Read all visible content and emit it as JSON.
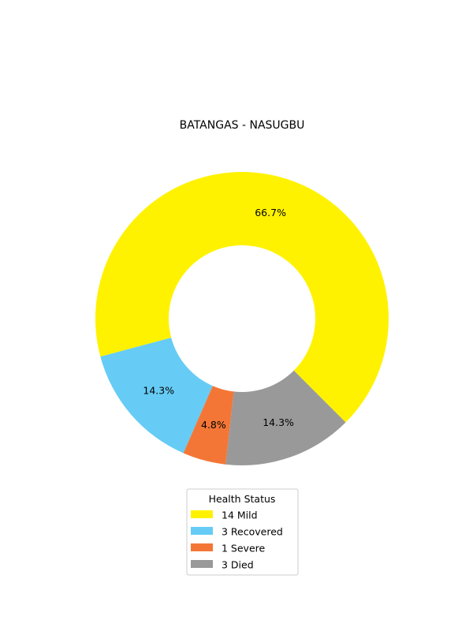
{
  "chart_data": {
    "type": "pie",
    "style": "donut",
    "title": "BATANGAS - NASUGBU",
    "legend": {
      "title": "Health Status",
      "placement": "bottom-center"
    },
    "slices": [
      {
        "label": "14  Mild",
        "value": 14,
        "percent_label": "66.7%",
        "color": "#FFF200"
      },
      {
        "label": "3  Recovered",
        "value": 3,
        "percent_label": "14.3%",
        "color": "#66CCF5"
      },
      {
        "label": "1  Severe",
        "value": 1,
        "percent_label": "4.8%",
        "color": "#F47637"
      },
      {
        "label": "3  Died",
        "value": 3,
        "percent_label": "14.3%",
        "color": "#999999"
      }
    ]
  }
}
